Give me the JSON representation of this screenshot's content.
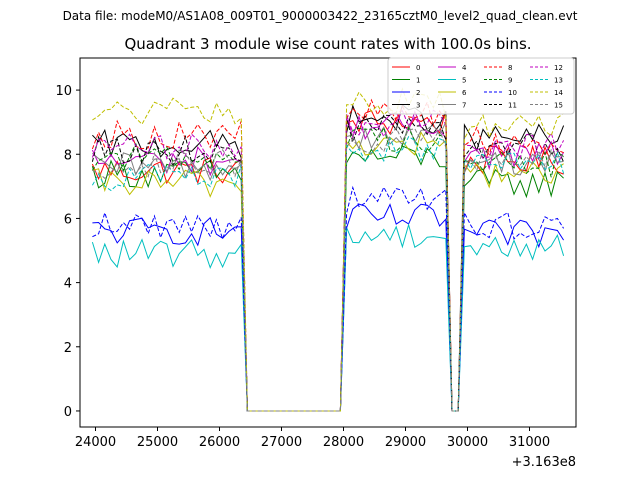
{
  "suptitle": "Data file: modeM0/AS1A08_009T01_9000003422_23165cztM0_level2_quad_clean.evt",
  "chart_data": {
    "type": "line",
    "title": "Quadrant 3 module wise count rates with 100.0s bins.",
    "xlabel": "",
    "ylabel": "",
    "x_offset_label": "+3.163e8",
    "xlim": [
      23750,
      31750
    ],
    "ylim": [
      -0.5,
      11
    ],
    "x_ticks": [
      24000,
      25000,
      26000,
      27000,
      28000,
      29000,
      30000,
      31000
    ],
    "x_tick_labels": [
      "24000",
      "25000",
      "26000",
      "27000",
      "28000",
      "29000",
      "30000",
      "31000"
    ],
    "y_ticks": [
      0,
      2,
      4,
      6,
      8,
      10
    ],
    "y_tick_labels": [
      "0",
      "2",
      "4",
      "6",
      "8",
      "10"
    ],
    "grid": false,
    "legend_position": "top-right",
    "segments": [
      {
        "x_start": 23950,
        "x_end": 26350,
        "dx": 100
      },
      {
        "x_start": 26450,
        "x_end": 27950,
        "dx": 100
      },
      {
        "x_start": 28050,
        "x_end": 29650,
        "dx": 100
      },
      {
        "x_start": 29750,
        "x_end": 29850,
        "dx": 100
      },
      {
        "x_start": 29950,
        "x_end": 31550,
        "dx": 100
      }
    ],
    "series": [
      {
        "name": "0",
        "color": "#ff0000",
        "dash": false,
        "levels": [
          7.5,
          9.0,
          7.8
        ]
      },
      {
        "name": "1",
        "color": "#008000",
        "dash": false,
        "levels": [
          7.4,
          7.9,
          7.1
        ]
      },
      {
        "name": "2",
        "color": "#0000ff",
        "dash": false,
        "levels": [
          5.6,
          6.0,
          5.5
        ]
      },
      {
        "name": "3",
        "color": "#000000",
        "dash": false,
        "levels": [
          8.3,
          9.1,
          8.5
        ]
      },
      {
        "name": "4",
        "color": "#bf00bf",
        "dash": false,
        "levels": [
          7.8,
          8.9,
          8.0
        ]
      },
      {
        "name": "5",
        "color": "#00bfbf",
        "dash": false,
        "levels": [
          4.9,
          5.5,
          5.1
        ]
      },
      {
        "name": "6",
        "color": "#bfbf00",
        "dash": false,
        "levels": [
          7.1,
          8.3,
          7.4
        ]
      },
      {
        "name": "7",
        "color": "#808080",
        "dash": false,
        "levels": [
          7.6,
          8.6,
          7.8
        ]
      },
      {
        "name": "8",
        "color": "#ff0000",
        "dash": true,
        "levels": [
          8.6,
          9.3,
          8.4
        ]
      },
      {
        "name": "9",
        "color": "#008000",
        "dash": true,
        "levels": [
          7.9,
          8.5,
          7.7
        ]
      },
      {
        "name": "10",
        "color": "#0000ff",
        "dash": true,
        "levels": [
          5.8,
          6.6,
          5.8
        ]
      },
      {
        "name": "11",
        "color": "#000000",
        "dash": true,
        "levels": [
          8.1,
          8.8,
          8.2
        ]
      },
      {
        "name": "12",
        "color": "#bf00bf",
        "dash": true,
        "levels": [
          8.2,
          9.0,
          8.3
        ]
      },
      {
        "name": "13",
        "color": "#00bfbf",
        "dash": true,
        "levels": [
          7.3,
          8.2,
          7.6
        ]
      },
      {
        "name": "14",
        "color": "#bfbf00",
        "dash": true,
        "levels": [
          9.3,
          9.6,
          8.9
        ]
      },
      {
        "name": "15",
        "color": "#808080",
        "dash": true,
        "levels": [
          7.7,
          8.4,
          7.9
        ]
      }
    ]
  }
}
